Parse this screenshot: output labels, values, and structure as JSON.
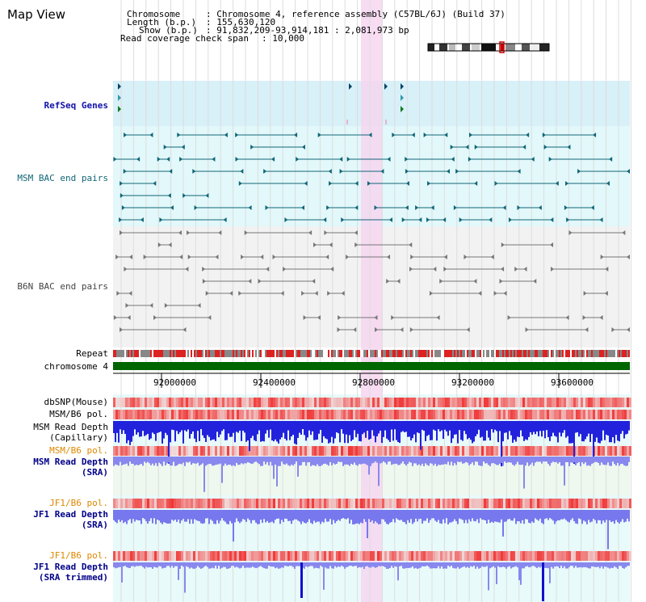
{
  "title": "Map View",
  "header": {
    "chromosome_key": "Chromosome",
    "chromosome_val": ": Chromosome 4, reference assembly (C57BL/6J) (Build 37)",
    "length_key": "Length (b.p.)",
    "length_val": ": 155,630,120",
    "show_key": "Show (b.p.)",
    "show_val": ": 91,832,209-93,914,181 : 2,081,973 bp",
    "span_key": "Read coverage check span",
    "span_val": ": 10,000"
  },
  "tracks": {
    "refseq": "RefSeq Genes",
    "msm_bac": "MSM BAC end pairs",
    "b6n_bac": "B6N BAC end pairs",
    "repeat": "Repeat",
    "chromosome": "chromosome 4",
    "dbsnp": "dbSNP(Mouse)",
    "msm_pol1": "MSM/B6 pol.",
    "msm_depth_cap_1": "MSM Read Depth",
    "msm_depth_cap_2": "(Capillary)",
    "msm_pol2": "MSM/B6 pol.",
    "msm_depth_sra_1": "MSM Read Depth",
    "msm_depth_sra_2": "(SRA)",
    "jf1_pol1": "JF1/B6 pol.",
    "jf1_depth_1": "JF1 Read Depth",
    "jf1_depth_2": "(SRA)",
    "jf1_pol2": "JF1/B6 pol.",
    "jf1_trim_1": "JF1 Read Depth",
    "jf1_trim_2": "(SRA trimmed)"
  },
  "axis": {
    "ticks": [
      "92000000",
      "92400000",
      "92800000",
      "93200000",
      "93600000"
    ]
  },
  "colors": {
    "highlight": "#f6d6f0",
    "refseq_bg": "#d8f0f8",
    "msm_bg": "#e2f8fa",
    "b6n_bg": "#f2f2f2",
    "chrom_bar": "#006600",
    "snp": "#ee3333",
    "depth": "#2222dd"
  }
}
